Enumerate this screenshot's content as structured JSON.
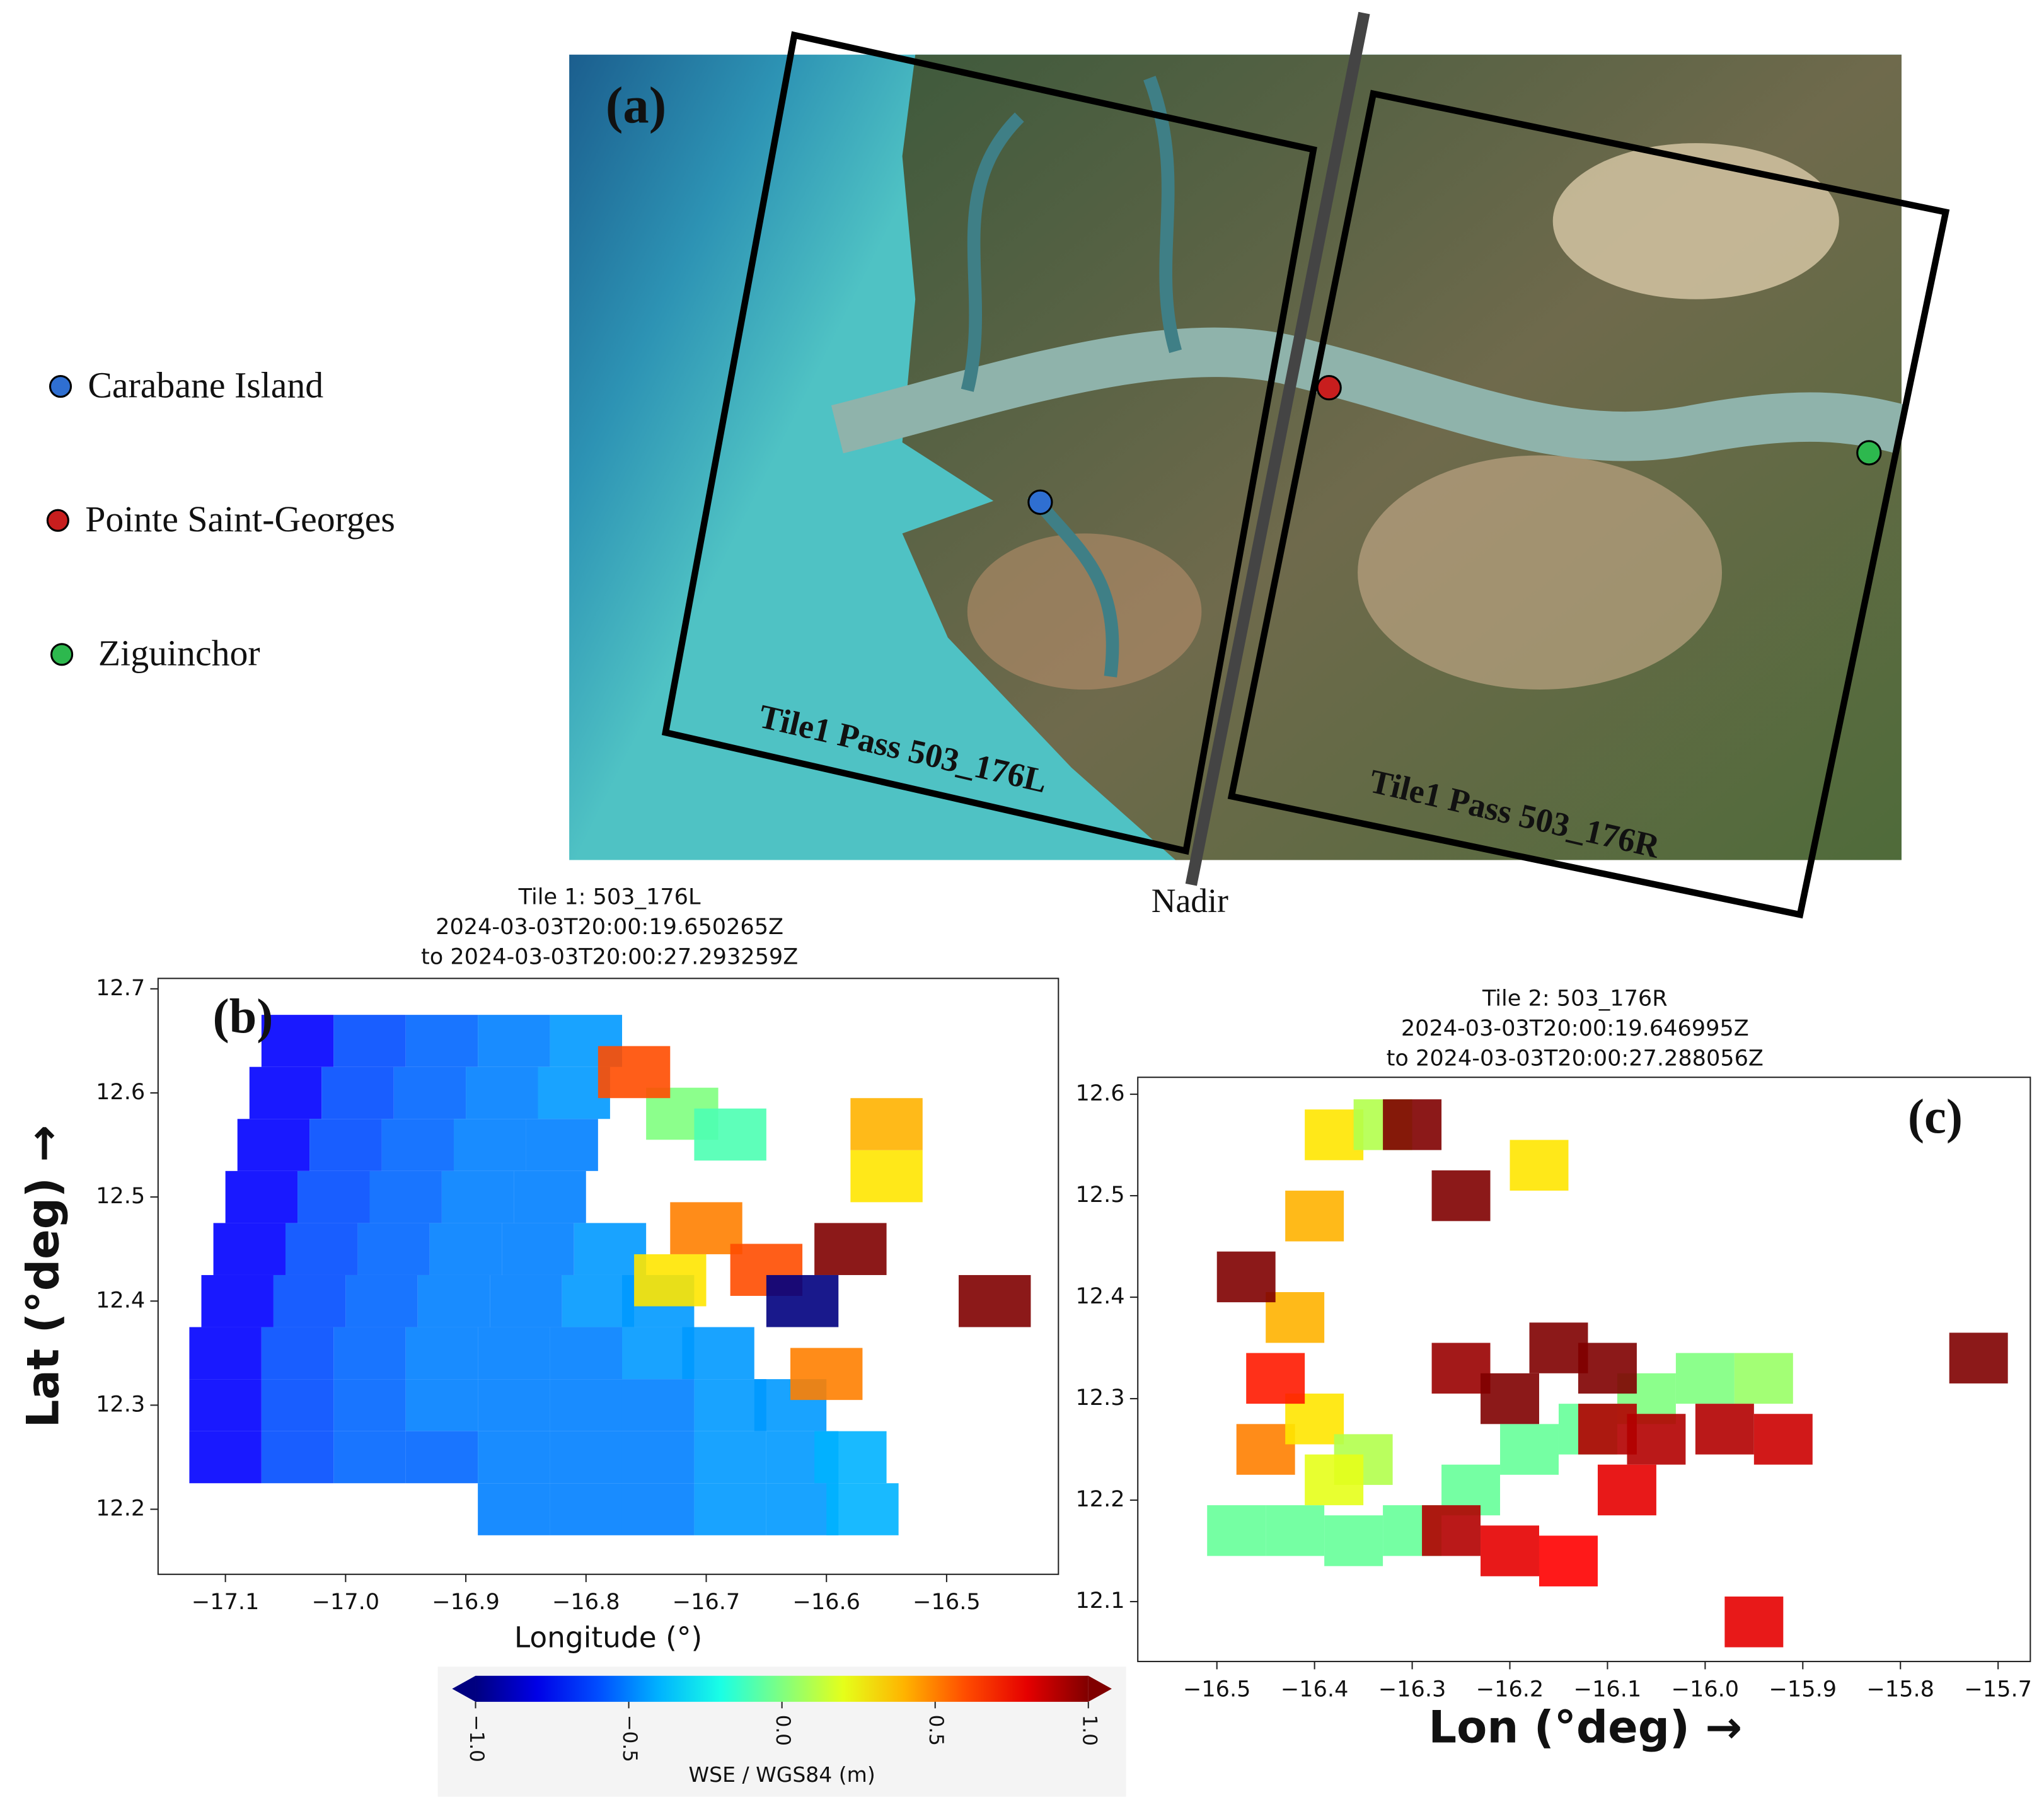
{
  "chart_data": [
    {
      "type": "image",
      "label": "(a)",
      "legend": [
        {
          "name": "Carabane Island",
          "color": "#2f6fd1"
        },
        {
          "name": "Pointe Saint-Georges",
          "color": "#c81e1e"
        },
        {
          "name": "Ziguinchor",
          "color": "#2db84e"
        }
      ],
      "annotations": [
        "Tile1 Pass 503_176L",
        "Tile1 Pass 503_176R",
        "Nadir"
      ]
    },
    {
      "type": "scatter",
      "label": "(b)",
      "title": [
        "Tile 1: 503_176L",
        "2024-03-03T20:00:19.650265Z",
        "to 2024-03-03T20:00:27.293259Z"
      ],
      "xlabel": "Longitude (°)",
      "ylabel": "Lat (°deg) →",
      "xlim": [
        -17.156,
        -16.407
      ],
      "ylim": [
        12.1375,
        12.71
      ],
      "xticks": [
        {
          "value": -17.1,
          "label": "−17.1"
        },
        {
          "value": -17.0,
          "label": "−17.0"
        },
        {
          "value": -16.9,
          "label": "−16.9"
        },
        {
          "value": -16.8,
          "label": "−16.8"
        },
        {
          "value": -16.7,
          "label": "−16.7"
        },
        {
          "value": -16.6,
          "label": "−16.6"
        },
        {
          "value": -16.5,
          "label": "−16.5"
        }
      ],
      "yticks": [
        12.7,
        12.6,
        12.5,
        12.4,
        12.3,
        12.2
      ],
      "x": [
        -17.04,
        -16.98,
        -16.92,
        -16.86,
        -16.8,
        -17.05,
        -16.99,
        -16.93,
        -16.87,
        -16.81,
        -17.06,
        -17.0,
        -16.94,
        -16.88,
        -16.82,
        -17.07,
        -17.01,
        -16.95,
        -16.89,
        -16.83,
        -17.08,
        -17.02,
        -16.96,
        -16.9,
        -16.84,
        -16.78,
        -17.09,
        -17.03,
        -16.97,
        -16.91,
        -16.85,
        -16.79,
        -16.74,
        -17.1,
        -17.04,
        -16.98,
        -16.92,
        -16.86,
        -16.8,
        -16.74,
        -16.69,
        -17.1,
        -17.04,
        -16.98,
        -16.92,
        -16.86,
        -16.8,
        -16.74,
        -16.68,
        -16.63,
        -17.1,
        -17.04,
        -16.98,
        -16.92,
        -16.86,
        -16.8,
        -16.74,
        -16.68,
        -16.62,
        -16.58,
        -16.86,
        -16.8,
        -16.74,
        -16.68,
        -16.62,
        -16.57,
        -16.72,
        -16.68,
        -16.76,
        -16.7,
        -16.65,
        -16.73,
        -16.55,
        -16.55,
        -16.58,
        -16.46,
        -16.62,
        -16.6
      ],
      "y": [
        12.65,
        12.65,
        12.65,
        12.65,
        12.65,
        12.6,
        12.6,
        12.6,
        12.6,
        12.6,
        12.55,
        12.55,
        12.55,
        12.55,
        12.55,
        12.5,
        12.5,
        12.5,
        12.5,
        12.5,
        12.45,
        12.45,
        12.45,
        12.45,
        12.45,
        12.45,
        12.4,
        12.4,
        12.4,
        12.4,
        12.4,
        12.4,
        12.4,
        12.35,
        12.35,
        12.35,
        12.35,
        12.35,
        12.35,
        12.35,
        12.35,
        12.3,
        12.3,
        12.3,
        12.3,
        12.3,
        12.3,
        12.3,
        12.3,
        12.3,
        12.25,
        12.25,
        12.25,
        12.25,
        12.25,
        12.25,
        12.25,
        12.25,
        12.25,
        12.25,
        12.2,
        12.2,
        12.2,
        12.2,
        12.2,
        12.2,
        12.58,
        12.56,
        12.62,
        12.47,
        12.43,
        12.42,
        12.52,
        12.57,
        12.45,
        12.4,
        12.4,
        12.33
      ],
      "values": [
        -0.75,
        -0.6,
        -0.55,
        -0.5,
        -0.45,
        -0.75,
        -0.6,
        -0.55,
        -0.5,
        -0.45,
        -0.75,
        -0.6,
        -0.55,
        -0.5,
        -0.5,
        -0.75,
        -0.6,
        -0.55,
        -0.5,
        -0.5,
        -0.75,
        -0.6,
        -0.55,
        -0.5,
        -0.5,
        -0.45,
        -0.75,
        -0.6,
        -0.55,
        -0.5,
        -0.5,
        -0.45,
        -0.45,
        -0.75,
        -0.6,
        -0.55,
        -0.5,
        -0.5,
        -0.5,
        -0.45,
        -0.45,
        -0.75,
        -0.6,
        -0.55,
        -0.5,
        -0.5,
        -0.5,
        -0.5,
        -0.45,
        -0.45,
        -0.75,
        -0.6,
        -0.55,
        -0.55,
        -0.5,
        -0.5,
        -0.5,
        -0.45,
        -0.45,
        -0.4,
        -0.5,
        -0.5,
        -0.5,
        -0.45,
        -0.45,
        -0.4,
        0.0,
        -0.1,
        0.6,
        0.5,
        0.6,
        0.3,
        0.3,
        0.4,
        1.0,
        1.0,
        -1.0,
        0.5
      ],
      "colormap": "jet",
      "colorbar": {
        "label": "WSE / WGS84 (m)",
        "lim": [
          -1,
          1
        ],
        "ticks": [
          {
            "value": -1.0,
            "label": "−1.0"
          },
          {
            "value": -0.5,
            "label": "−0.5"
          },
          {
            "value": 0.0,
            "label": "0.0"
          },
          0.5,
          {
            "value": 1.0,
            "label": "1.0"
          }
        ]
      }
    },
    {
      "type": "scatter",
      "label": "(c)",
      "title": [
        "Tile 2: 503_176R",
        "2024-03-03T20:00:19.646995Z",
        "to 2024-03-03T20:00:27.288056Z"
      ],
      "xlabel": "Lon (°deg)  →",
      "xlim": [
        -16.581,
        -15.667
      ],
      "ylim": [
        12.041,
        12.6167
      ],
      "xticks": [
        {
          "value": -16.5,
          "label": "−16.5"
        },
        {
          "value": -16.4,
          "label": "−16.4"
        },
        {
          "value": -16.3,
          "label": "−16.3"
        },
        {
          "value": -16.2,
          "label": "−16.2"
        },
        {
          "value": -16.1,
          "label": "−16.1"
        },
        {
          "value": -16.0,
          "label": "−16.0"
        },
        {
          "value": -15.9,
          "label": "−15.9"
        },
        {
          "value": -15.8,
          "label": "−15.8"
        },
        {
          "value": -15.7,
          "label": "−15.7"
        }
      ],
      "yticks": [
        12.6,
        12.5,
        12.4,
        12.3,
        12.2,
        12.1
      ],
      "x": [
        -16.48,
        -16.42,
        -16.36,
        -16.3,
        -16.24,
        -16.18,
        -16.12,
        -16.06,
        -16.0,
        -15.94,
        -16.25,
        -16.2,
        -16.15,
        -16.1,
        -16.1,
        -16.05,
        -15.98,
        -15.92,
        -16.2,
        -16.14,
        -16.26,
        -16.08,
        -16.45,
        -16.4,
        -16.35,
        -16.44,
        -16.38,
        -16.38,
        -16.33,
        -16.4,
        -16.42,
        -16.47,
        -16.25,
        -16.3,
        -15.72,
        -15.95,
        -16.17
      ],
      "y": [
        12.17,
        12.17,
        12.16,
        12.17,
        12.21,
        12.25,
        12.27,
        12.3,
        12.32,
        12.32,
        12.33,
        12.3,
        12.35,
        12.27,
        12.33,
        12.26,
        12.27,
        12.26,
        12.15,
        12.14,
        12.17,
        12.21,
        12.25,
        12.28,
        12.24,
        12.32,
        12.22,
        12.56,
        12.57,
        12.48,
        12.38,
        12.42,
        12.5,
        12.57,
        12.34,
        12.08,
        12.53
      ],
      "values": [
        -0.05,
        -0.05,
        -0.05,
        -0.05,
        -0.05,
        -0.05,
        -0.05,
        0.0,
        0.0,
        0.05,
        0.95,
        1.0,
        1.0,
        0.9,
        1.0,
        0.9,
        0.9,
        0.85,
        0.8,
        0.75,
        0.9,
        0.8,
        0.5,
        0.3,
        0.1,
        0.7,
        0.2,
        0.3,
        0.1,
        0.4,
        0.4,
        1.0,
        1.0,
        1.0,
        1.0,
        0.8,
        0.3
      ],
      "colormap": "jet"
    }
  ]
}
